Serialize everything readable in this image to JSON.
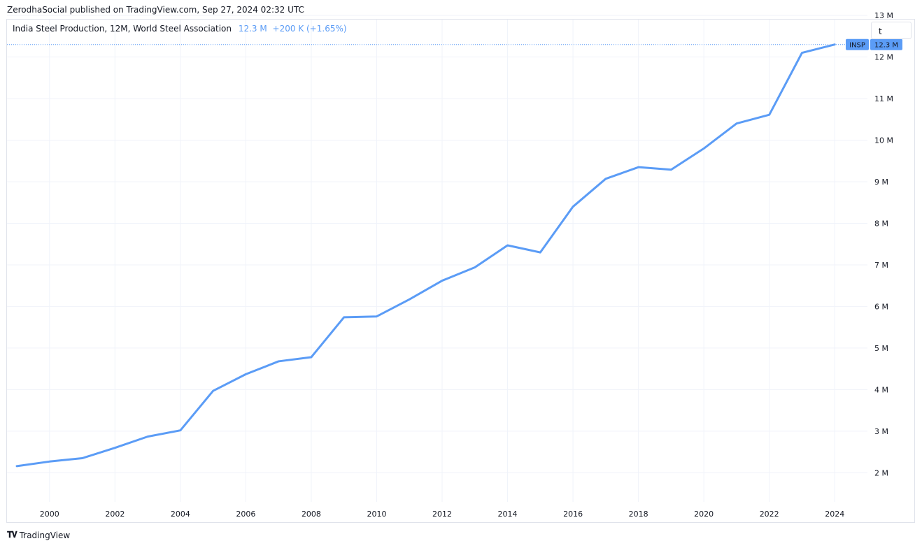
{
  "header": {
    "published": "ZerodhaSocial published on TradingView.com, Sep 27, 2024 02:32 UTC"
  },
  "legend": {
    "name": "India Steel Production, 12M, World Steel Association",
    "value": "12.3 M",
    "change": "+200 K (+1.65%)"
  },
  "timeframe_input": {
    "value": "t"
  },
  "price_tag": {
    "symbol": "INSP",
    "value": "12.3 M",
    "color": "#5b9cf6"
  },
  "footer": {
    "brand": "TradingView"
  },
  "colors": {
    "line": "#5b9cf6",
    "grid": "#f0f3fa",
    "text": "#131722"
  },
  "chart_data": {
    "type": "line",
    "series": [
      {
        "name": "INSP",
        "x": [
          1999,
          2000,
          2001,
          2002,
          2003,
          2004,
          2005,
          2006,
          2007,
          2008,
          2009,
          2010,
          2011,
          2012,
          2013,
          2014,
          2015,
          2016,
          2017,
          2018,
          2019,
          2020,
          2021,
          2022,
          2023,
          2024
        ],
        "values": [
          2.16,
          2.27,
          2.35,
          2.6,
          2.87,
          3.02,
          3.97,
          4.37,
          4.68,
          4.78,
          5.74,
          5.76,
          6.17,
          6.62,
          6.94,
          7.47,
          7.3,
          8.4,
          9.07,
          9.35,
          9.29,
          9.8,
          10.4,
          10.61,
          12.1,
          12.3
        ]
      }
    ],
    "x_ticks": [
      "2000",
      "2002",
      "2004",
      "2006",
      "2008",
      "2010",
      "2012",
      "2014",
      "2016",
      "2018",
      "2020",
      "2022",
      "2024"
    ],
    "y_ticks": [
      "2 M",
      "3 M",
      "4 M",
      "5 M",
      "6 M",
      "7 M",
      "8 M",
      "9 M",
      "10 M",
      "11 M",
      "12 M",
      "13 M"
    ],
    "xlim": [
      1998.7,
      2025.0
    ],
    "ylim": [
      1.3,
      12.9
    ],
    "grid": true,
    "last_value_line": 12.3
  }
}
